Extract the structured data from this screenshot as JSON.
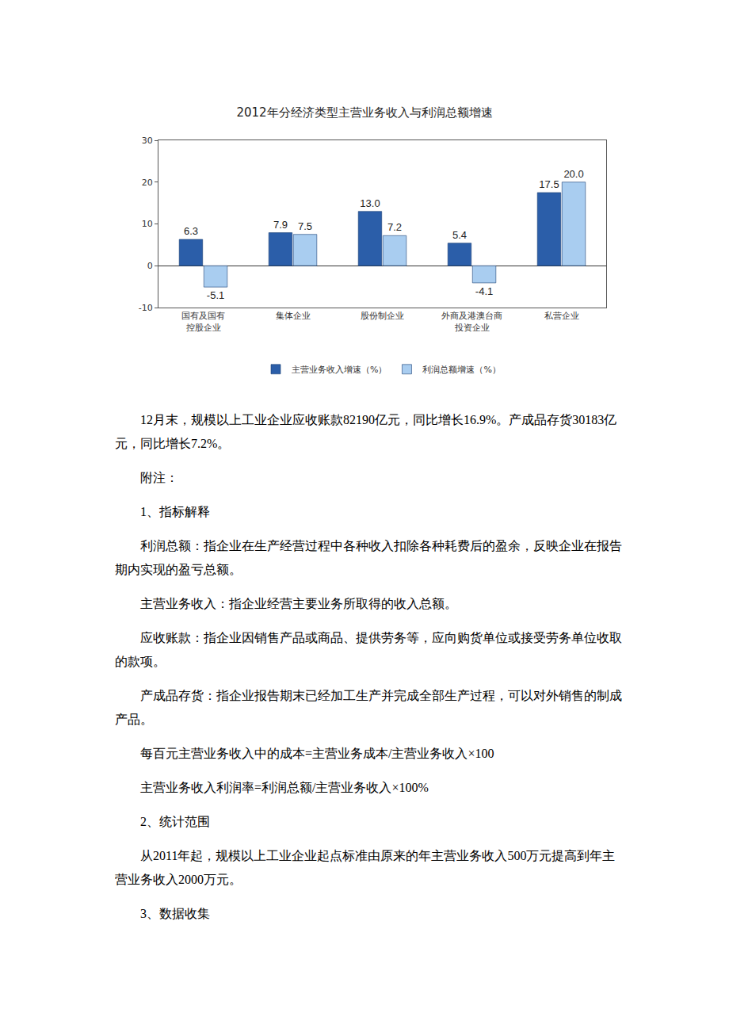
{
  "chart_data": {
    "type": "bar",
    "title": "2012年分经济类型主营业务收入与利润总额增速",
    "categories": [
      "国有及国有\n控股企业",
      "集体企业",
      "股份制企业",
      "外商及港澳台商\n投资企业",
      "私营企业"
    ],
    "series": [
      {
        "name": "主营业务收入增速（%）",
        "color": "#2b5ea9",
        "values": [
          6.3,
          7.9,
          13.0,
          5.4,
          17.5
        ],
        "value_labels": [
          "6.3",
          "7.9",
          "13.0",
          "5.4",
          "17.5"
        ]
      },
      {
        "name": "利润总额增速（%）",
        "color": "#a9cdf0",
        "values": [
          -5.1,
          7.5,
          7.2,
          -4.1,
          20.0
        ],
        "value_labels": [
          "-5.1",
          "7.5",
          "7.2",
          "-4.1",
          "20.0"
        ]
      }
    ],
    "ylim": [
      -10,
      30
    ],
    "yticks": [
      -10,
      0,
      10,
      20,
      30
    ],
    "grid": false,
    "legend": "bottom",
    "data_labels": true
  },
  "document": {
    "paragraphs": [
      "12月末，规模以上工业企业应收账款82190亿元，同比增长16.9%。产成品存货30183亿元，同比增长7.2%。",
      "附注：",
      "1、指标解释",
      "利润总额：指企业在生产经营过程中各种收入扣除各种耗费后的盈余，反映企业在报告期内实现的盈亏总额。",
      "主营业务收入：指企业经营主要业务所取得的收入总额。",
      "应收账款：指企业因销售产品或商品、提供劳务等，应向购货单位或接受劳务单位收取的款项。",
      "产成品存货：指企业报告期末已经加工生产并完成全部生产过程，可以对外销售的制成产品。",
      "每百元主营业务收入中的成本=主营业务成本/主营业务收入×100",
      "主营业务收入利润率=利润总额/主营业务收入×100%",
      "2、统计范围",
      "从2011年起，规模以上工业企业起点标准由原来的年主营业务收入500万元提高到年主营业务收入2000万元。",
      "3、数据收集"
    ]
  }
}
